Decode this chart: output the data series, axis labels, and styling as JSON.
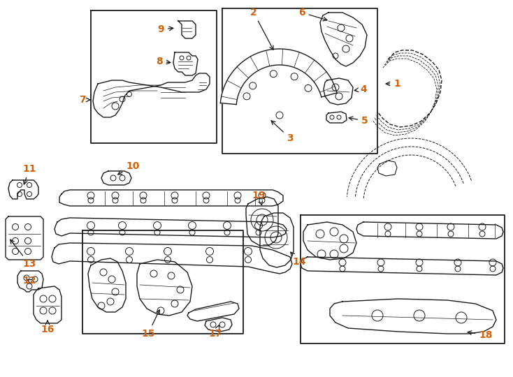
{
  "bg_color": "#ffffff",
  "line_color": "#1a1a1a",
  "label_color": "#d4610a",
  "figsize": [
    7.34,
    5.4
  ],
  "dpi": 100,
  "xlim": [
    0,
    734
  ],
  "ylim": [
    0,
    540
  ]
}
